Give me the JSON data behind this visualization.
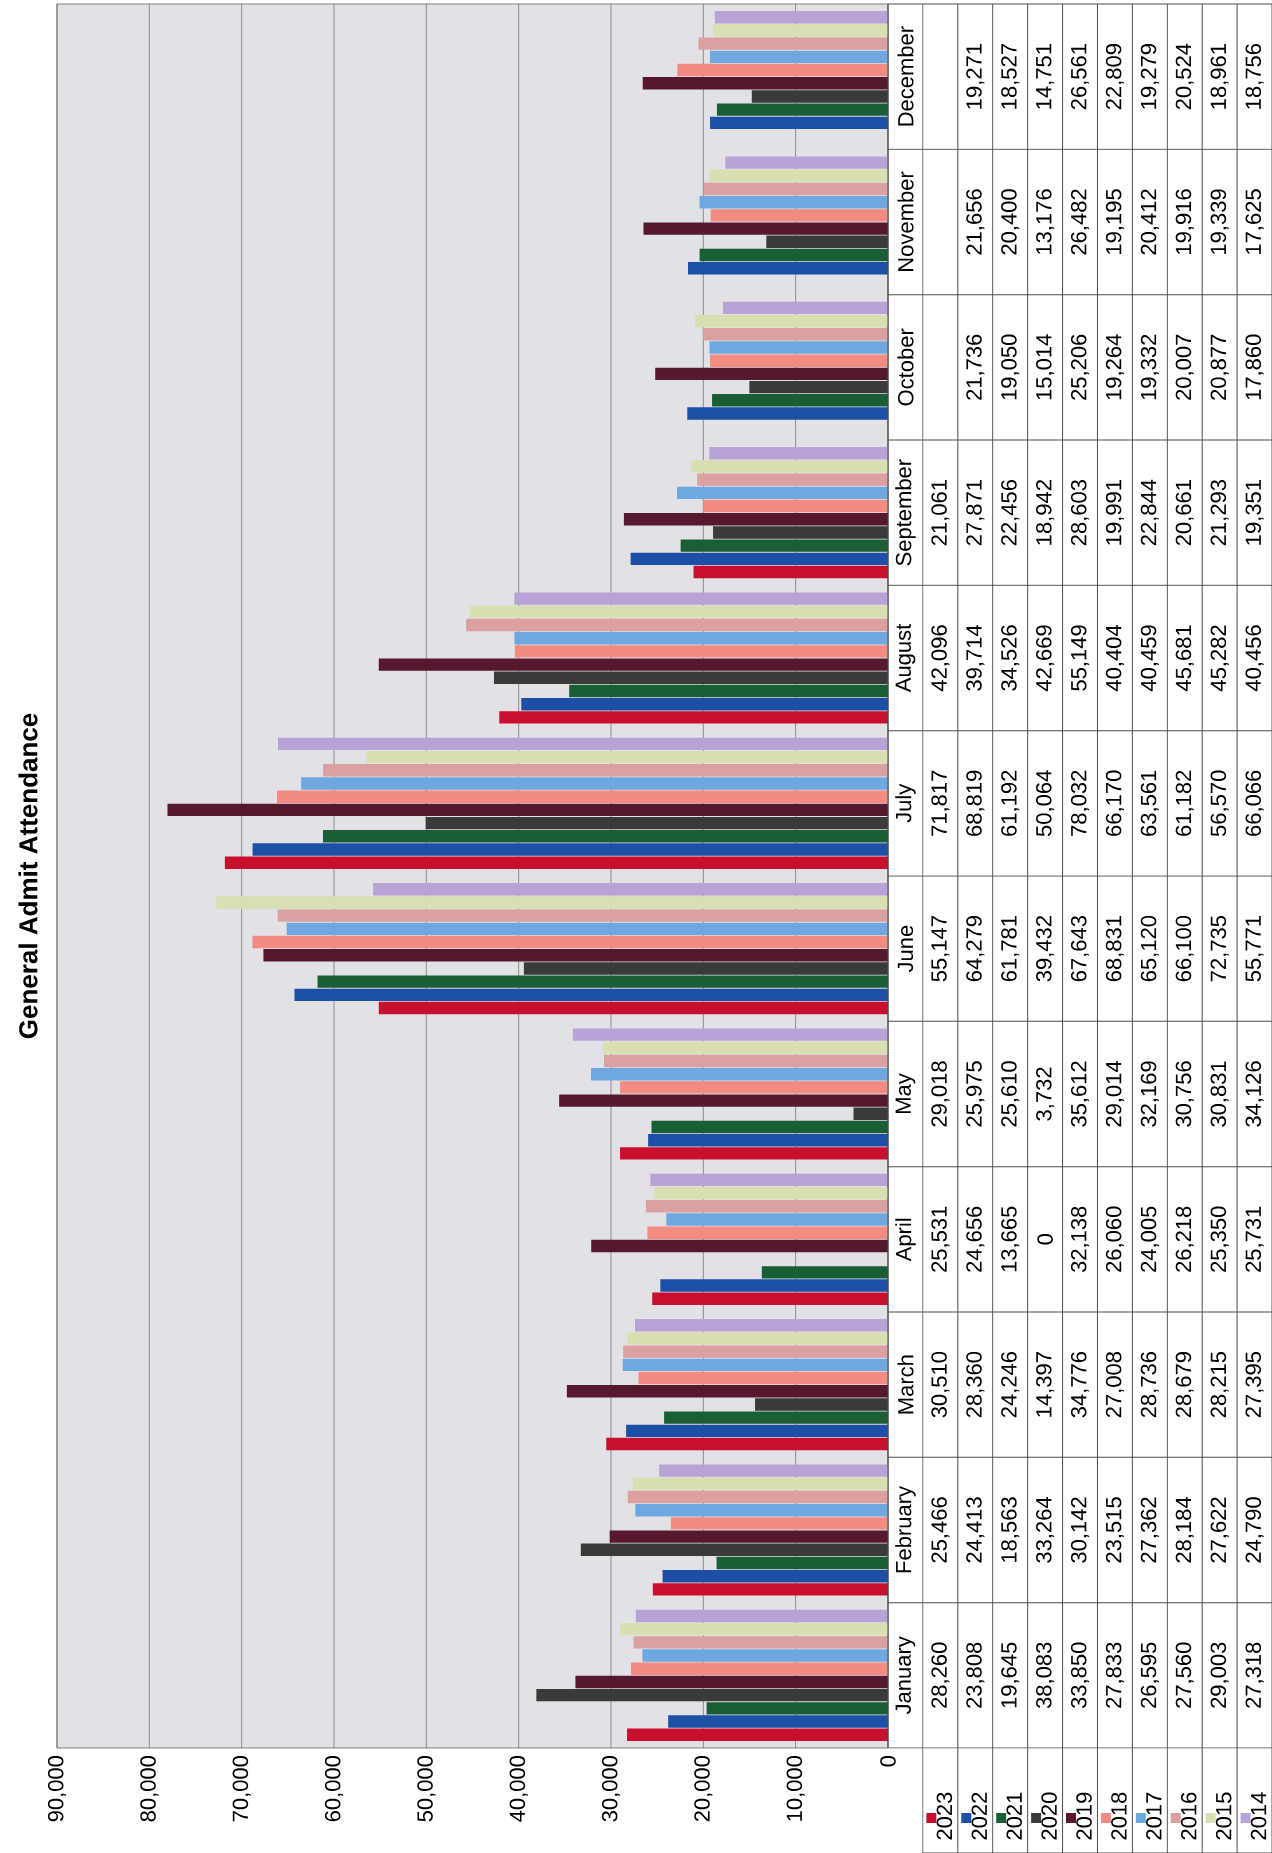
{
  "chart_data": {
    "type": "bar",
    "orientation": "horizontal",
    "title": "General Admit Attendance",
    "categories": [
      "December",
      "November",
      "October",
      "September",
      "August",
      "July",
      "June",
      "May",
      "April",
      "March",
      "February",
      "January"
    ],
    "series": [
      {
        "name": "2023",
        "color": "#c8102e",
        "values": [
          null,
          null,
          null,
          21061,
          42096,
          71817,
          55147,
          29018,
          25531,
          30510,
          25466,
          28260
        ],
        "value_labels": [
          null,
          null,
          null,
          "21,061",
          "42,096",
          "71,817",
          "55,147",
          "29,018",
          "25,531",
          "30,510",
          "25,466",
          "28,260"
        ]
      },
      {
        "name": "2022",
        "color": "#1c4fa6",
        "values": [
          19271,
          21656,
          21736,
          27871,
          39714,
          68819,
          64279,
          25975,
          24656,
          28360,
          24413,
          23808
        ],
        "value_labels": [
          "19,271",
          "21,656",
          "21,736",
          "27,871",
          "39,714",
          "68,819",
          "64,279",
          "25,975",
          "24,656",
          "28,360",
          "24,413",
          "23,808"
        ]
      },
      {
        "name": "2021",
        "color": "#1a5e36",
        "values": [
          18527,
          20400,
          19050,
          22456,
          34526,
          61192,
          61781,
          25610,
          13665,
          24246,
          18563,
          19645
        ],
        "value_labels": [
          "18,527",
          "20,400",
          "19,050",
          "22,456",
          "34,526",
          "61,192",
          "61,781",
          "25,610",
          "13,665",
          "24,246",
          "18,563",
          "19,645"
        ]
      },
      {
        "name": "2020",
        "color": "#3a3a3a",
        "values": [
          14751,
          13176,
          15014,
          18942,
          42669,
          50064,
          39432,
          3732,
          0,
          14397,
          33264,
          38083
        ],
        "value_labels": [
          "14,751",
          "13,176",
          "15,014",
          "18,942",
          "42,669",
          "50,064",
          "39,432",
          "3,732",
          "0",
          "14,397",
          "33,264",
          "38,083"
        ]
      },
      {
        "name": "2019",
        "color": "#55182f",
        "values": [
          26561,
          26482,
          25206,
          28603,
          55149,
          78032,
          67643,
          35612,
          32138,
          34776,
          30142,
          33850
        ],
        "value_labels": [
          "26,561",
          "26,482",
          "25,206",
          "28,603",
          "55,149",
          "78,032",
          "67,643",
          "35,612",
          "32,138",
          "34,776",
          "30,142",
          "33,850"
        ]
      },
      {
        "name": "2018",
        "color": "#f28b82",
        "values": [
          22809,
          19195,
          19264,
          19991,
          40404,
          66170,
          68831,
          29014,
          26060,
          27008,
          23515,
          27833
        ],
        "value_labels": [
          "22,809",
          "19,195",
          "19,264",
          "19,991",
          "40,404",
          "66,170",
          "68,831",
          "29,014",
          "26,060",
          "27,008",
          "23,515",
          "27,833"
        ]
      },
      {
        "name": "2017",
        "color": "#6fa8e0",
        "values": [
          19279,
          20412,
          19332,
          22844,
          40459,
          63561,
          65120,
          32169,
          24005,
          28736,
          27362,
          26595
        ],
        "value_labels": [
          "19,279",
          "20,412",
          "19,332",
          "22,844",
          "40,459",
          "63,561",
          "65,120",
          "32,169",
          "24,005",
          "28,736",
          "27,362",
          "26,595"
        ]
      },
      {
        "name": "2016",
        "color": "#dba0a0",
        "values": [
          20524,
          19916,
          20007,
          20661,
          45681,
          61182,
          66100,
          30756,
          26218,
          28679,
          28184,
          27560
        ],
        "value_labels": [
          "20,524",
          "19,916",
          "20,007",
          "20,661",
          "45,681",
          "61,182",
          "66,100",
          "30,756",
          "26,218",
          "28,679",
          "28,184",
          "27,560"
        ]
      },
      {
        "name": "2015",
        "color": "#d9dfb0",
        "values": [
          18961,
          19339,
          20877,
          21293,
          45282,
          56570,
          72735,
          30831,
          25350,
          28215,
          27622,
          29003
        ],
        "value_labels": [
          "18,961",
          "19,339",
          "20,877",
          "21,293",
          "45,282",
          "56,570",
          "72,735",
          "30,831",
          "25,350",
          "28,215",
          "27,622",
          "29,003"
        ]
      },
      {
        "name": "2014",
        "color": "#b9a3d6",
        "values": [
          18756,
          17625,
          17860,
          19351,
          40456,
          66066,
          55771,
          34126,
          25731,
          27395,
          24790,
          27318
        ],
        "value_labels": [
          "18,756",
          "17,625",
          "17,860",
          "19,351",
          "40,456",
          "66,066",
          "55,771",
          "34,126",
          "25,731",
          "27,395",
          "24,790",
          "27,318"
        ]
      }
    ],
    "xlim": [
      90000,
      0
    ],
    "xticks": [
      {
        "value": 90000,
        "label": "90,000"
      },
      {
        "value": 80000,
        "label": "80,000"
      },
      {
        "value": 70000,
        "label": "70,000"
      },
      {
        "value": 60000,
        "label": "60,000"
      },
      {
        "value": 50000,
        "label": "50,000"
      },
      {
        "value": 40000,
        "label": "40,000"
      },
      {
        "value": 30000,
        "label": "30,000"
      },
      {
        "value": 20000,
        "label": "20,000"
      },
      {
        "value": 10000,
        "label": "10,000"
      },
      {
        "value": 0,
        "label": "0"
      }
    ],
    "grid": "x",
    "legend": "bottom right"
  }
}
